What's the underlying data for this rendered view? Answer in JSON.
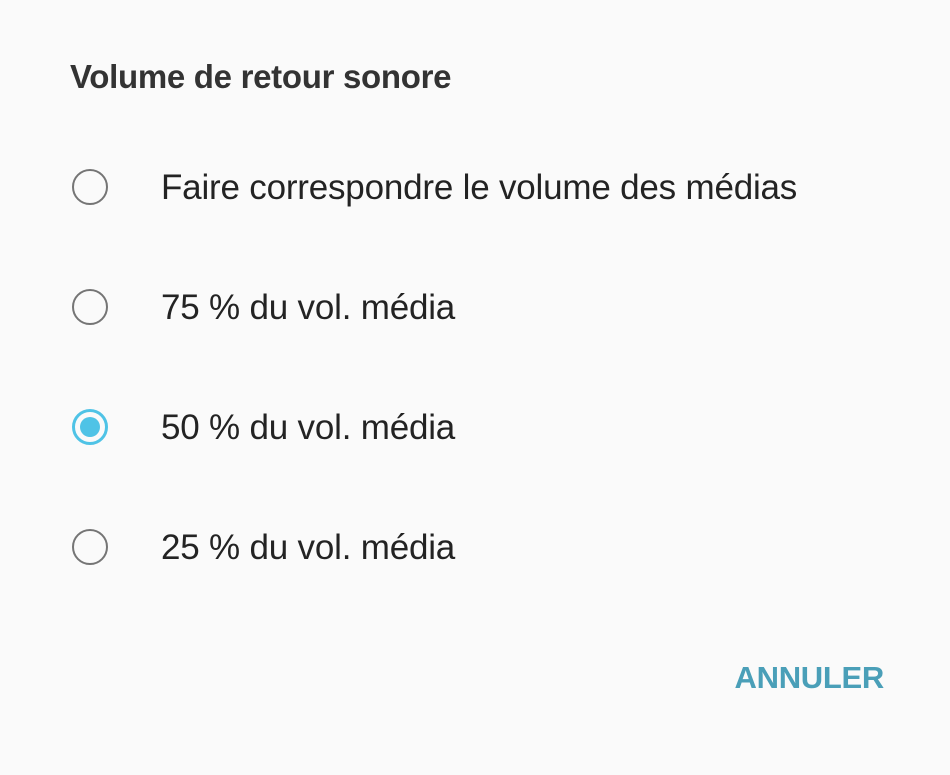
{
  "dialog": {
    "title": "Volume de retour sonore",
    "options": [
      {
        "label": "Faire correspondre le volume des médias",
        "selected": false
      },
      {
        "label": "75 % du vol. média",
        "selected": false
      },
      {
        "label": "50 % du vol. média",
        "selected": true
      },
      {
        "label": "25 % du vol. média",
        "selected": false
      }
    ],
    "cancel_label": "ANNULER"
  },
  "colors": {
    "accent": "#4fc3e6",
    "cancel_text": "#4a9fb8",
    "radio_unselected": "#757575",
    "background": "#fafafa"
  }
}
